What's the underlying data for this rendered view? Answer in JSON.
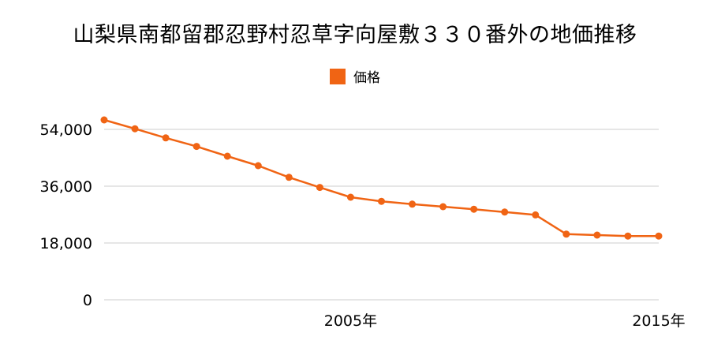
{
  "chart_data": {
    "type": "line",
    "title": "山梨県南都留郡忍野村忍草字向屋敷３３０番外の地価推移",
    "legend": "価格",
    "color": "#f06414",
    "x": [
      1997,
      1998,
      1999,
      2000,
      2001,
      2002,
      2003,
      2004,
      2005,
      2006,
      2007,
      2008,
      2009,
      2010,
      2011,
      2012,
      2013,
      2014,
      2015
    ],
    "series": [
      {
        "name": "価格",
        "values": [
          57000,
          54200,
          51300,
          48600,
          45500,
          42500,
          38800,
          35600,
          32500,
          31200,
          30300,
          29500,
          28700,
          27800,
          26900,
          20800,
          20500,
          20200,
          20200
        ]
      }
    ],
    "yticks": [
      "0",
      "18,000",
      "36,000",
      "54,000"
    ],
    "ytick_values": [
      0,
      18000,
      36000,
      54000
    ],
    "xticks": [
      "2005年",
      "2015年"
    ],
    "xtick_values": [
      2005,
      2015
    ],
    "ylim": [
      0,
      54000
    ],
    "xlim": [
      1997,
      2015
    ],
    "grid": "horizontal",
    "legend_position": "top-center"
  }
}
